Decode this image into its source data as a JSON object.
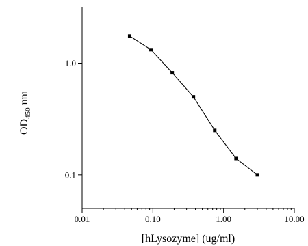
{
  "chart_data": {
    "type": "line",
    "title": "",
    "xlabel": "[hLysozyme] (ug/ml)",
    "ylabel": {
      "main": "OD",
      "subscript": "450",
      "suffix": " nm"
    },
    "x_scale": "log",
    "y_scale": "log",
    "xlim": [
      0.01,
      10.0
    ],
    "ylim": [
      0.05,
      3.2
    ],
    "x_ticks": [
      {
        "value": 0.01,
        "label": "0.01"
      },
      {
        "value": 0.1,
        "label": "0.10"
      },
      {
        "value": 1.0,
        "label": "1.00"
      },
      {
        "value": 10.0,
        "label": "10.00"
      }
    ],
    "y_ticks": [
      {
        "value": 0.1,
        "label": "0.1"
      },
      {
        "value": 1.0,
        "label": "1.0"
      }
    ],
    "grid": false,
    "legend": "none",
    "series": [
      {
        "color": "#000000",
        "marker": "square",
        "x": [
          0.047,
          0.094,
          0.188,
          0.375,
          0.75,
          1.5,
          3.0
        ],
        "y": [
          1.75,
          1.32,
          0.82,
          0.5,
          0.25,
          0.14,
          0.1
        ]
      }
    ]
  }
}
